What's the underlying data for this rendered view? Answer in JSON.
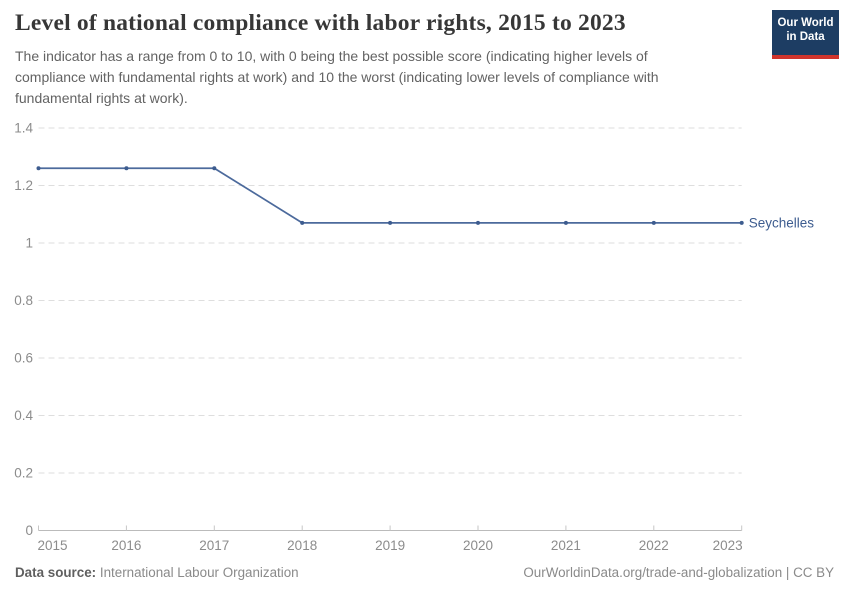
{
  "header": {
    "title": "Level of national compliance with labor rights, 2015 to 2023",
    "subtitle": "The indicator has a range from 0 to 10, with 0 being the best possible score (indicating higher levels of compliance with fundamental rights at work) and 10 the worst (indicating lower levels of compliance with fundamental rights at work).",
    "logo": {
      "line1": "Our World",
      "line2": "in Data",
      "bg_color": "#1d3d63",
      "stripe_color": "#d0342c"
    }
  },
  "chart_data": {
    "type": "line",
    "title": "Level of national compliance with labor rights, 2015 to 2023",
    "x": [
      2015,
      2016,
      2017,
      2018,
      2019,
      2020,
      2021,
      2022,
      2023
    ],
    "xtick_labels": [
      "2015",
      "2016",
      "2017",
      "2018",
      "2019",
      "2020",
      "2021",
      "2022",
      "2023"
    ],
    "series": [
      {
        "name": "Seychelles",
        "color": "#4c6a9c",
        "marker_color": "#3d5c8f",
        "values": [
          1.26,
          1.26,
          1.26,
          1.07,
          1.07,
          1.07,
          1.07,
          1.07,
          1.07
        ]
      }
    ],
    "xlabel": "",
    "ylabel": "",
    "ylim": [
      0,
      1.4
    ],
    "yticks": [
      0,
      0.2,
      0.4,
      0.6,
      0.8,
      1,
      1.2,
      1.4
    ],
    "ytick_labels": [
      "0",
      "0.2",
      "0.4",
      "0.6",
      "0.8",
      "1",
      "1.2",
      "1.4"
    ],
    "grid": "horizontal-dashed",
    "legend": "end-of-line-label"
  },
  "colors": {
    "grid": "#dedede",
    "axis": "#bbbbbb",
    "tick": "#c6c6c6",
    "tick_text": "#8c8c8c"
  },
  "footer": {
    "source_label": "Data source:",
    "source_value": "International Labour Organization",
    "attribution": "OurWorldinData.org/trade-and-globalization | CC BY"
  }
}
